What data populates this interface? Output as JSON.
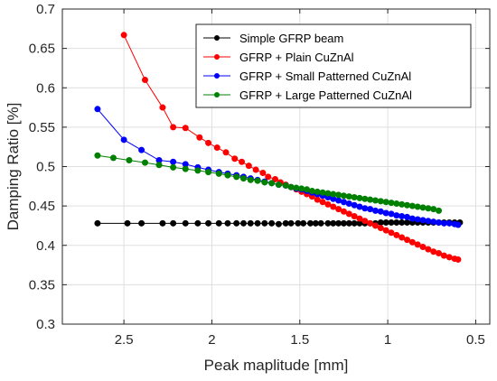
{
  "chart_data": {
    "type": "line",
    "xlabel": "Peak maplitude [mm]",
    "ylabel": "Damping Ratio [%]",
    "xlim": [
      2.85,
      0.42
    ],
    "x_reversed": true,
    "ylim": [
      0.3,
      0.7
    ],
    "xticks": [
      2.5,
      2,
      1.5,
      1,
      0.5
    ],
    "yticks": [
      0.3,
      0.35,
      0.4,
      0.45,
      0.5,
      0.55,
      0.6,
      0.65,
      0.7
    ],
    "xtick_labels": [
      "2.5",
      "2",
      "1.5",
      "1",
      "0.5"
    ],
    "ytick_labels": [
      "0.3",
      "0.35",
      "0.4",
      "0.45",
      "0.5",
      "0.55",
      "0.6",
      "0.65",
      "0.7"
    ],
    "grid": true,
    "legend_position": "top-right",
    "series": [
      {
        "name": "Simple GFRP beam",
        "color": "#000000",
        "x": [
          2.65,
          2.48,
          2.4,
          2.28,
          2.22,
          2.15,
          2.08,
          2.02,
          1.96,
          1.91,
          1.86,
          1.82,
          1.78,
          1.74,
          1.7,
          1.66,
          1.62,
          1.58,
          1.55,
          1.51,
          1.48,
          1.44,
          1.41,
          1.38,
          1.34,
          1.31,
          1.28,
          1.25,
          1.22,
          1.19,
          1.16,
          1.13,
          1.1,
          1.07,
          1.04,
          1.01,
          0.98,
          0.95,
          0.92,
          0.89,
          0.86,
          0.83,
          0.8,
          0.77,
          0.74,
          0.71,
          0.68,
          0.65,
          0.62,
          0.59
        ],
        "y": [
          0.428,
          0.428,
          0.428,
          0.428,
          0.428,
          0.428,
          0.428,
          0.428,
          0.428,
          0.428,
          0.428,
          0.428,
          0.428,
          0.428,
          0.428,
          0.428,
          0.427,
          0.428,
          0.428,
          0.428,
          0.428,
          0.428,
          0.428,
          0.428,
          0.428,
          0.428,
          0.428,
          0.428,
          0.428,
          0.428,
          0.428,
          0.428,
          0.428,
          0.428,
          0.429,
          0.429,
          0.429,
          0.429,
          0.429,
          0.429,
          0.429,
          0.429,
          0.429,
          0.429,
          0.429,
          0.429,
          0.429,
          0.429,
          0.429,
          0.429
        ]
      },
      {
        "name": "GFRP + Plain CuZnAl",
        "color": "#ff0000",
        "x": [
          2.5,
          2.38,
          2.28,
          2.22,
          2.15,
          2.07,
          2.02,
          1.97,
          1.92,
          1.87,
          1.83,
          1.79,
          1.75,
          1.71,
          1.68,
          1.64,
          1.61,
          1.58,
          1.55,
          1.52,
          1.49,
          1.46,
          1.43,
          1.4,
          1.37,
          1.34,
          1.31,
          1.28,
          1.25,
          1.22,
          1.19,
          1.16,
          1.13,
          1.1,
          1.07,
          1.04,
          1.01,
          0.98,
          0.95,
          0.92,
          0.89,
          0.86,
          0.83,
          0.8,
          0.77,
          0.74,
          0.71,
          0.68,
          0.65,
          0.62,
          0.6
        ],
        "y": [
          0.667,
          0.61,
          0.575,
          0.55,
          0.549,
          0.537,
          0.53,
          0.524,
          0.518,
          0.51,
          0.506,
          0.501,
          0.496,
          0.492,
          0.487,
          0.484,
          0.48,
          0.477,
          0.474,
          0.471,
          0.468,
          0.465,
          0.462,
          0.458,
          0.455,
          0.452,
          0.449,
          0.446,
          0.443,
          0.44,
          0.437,
          0.434,
          0.431,
          0.428,
          0.425,
          0.422,
          0.419,
          0.416,
          0.413,
          0.41,
          0.407,
          0.404,
          0.401,
          0.398,
          0.395,
          0.392,
          0.39,
          0.387,
          0.385,
          0.383,
          0.382
        ]
      },
      {
        "name": "GFRP + Small Patterned CuZnAl",
        "color": "#0000ff",
        "x": [
          2.65,
          2.5,
          2.4,
          2.3,
          2.22,
          2.15,
          2.08,
          2.02,
          1.96,
          1.91,
          1.86,
          1.82,
          1.78,
          1.74,
          1.7,
          1.66,
          1.62,
          1.58,
          1.55,
          1.52,
          1.49,
          1.46,
          1.43,
          1.4,
          1.37,
          1.34,
          1.31,
          1.28,
          1.25,
          1.22,
          1.19,
          1.16,
          1.13,
          1.1,
          1.07,
          1.04,
          1.01,
          0.98,
          0.95,
          0.92,
          0.89,
          0.86,
          0.83,
          0.8,
          0.77,
          0.74,
          0.71,
          0.68,
          0.65,
          0.62,
          0.6
        ],
        "y": [
          0.573,
          0.534,
          0.521,
          0.508,
          0.506,
          0.503,
          0.499,
          0.496,
          0.493,
          0.491,
          0.489,
          0.487,
          0.485,
          0.483,
          0.481,
          0.479,
          0.477,
          0.476,
          0.474,
          0.472,
          0.471,
          0.469,
          0.467,
          0.465,
          0.463,
          0.461,
          0.459,
          0.457,
          0.455,
          0.453,
          0.451,
          0.449,
          0.447,
          0.446,
          0.444,
          0.443,
          0.441,
          0.44,
          0.438,
          0.437,
          0.436,
          0.434,
          0.433,
          0.432,
          0.431,
          0.43,
          0.429,
          0.428,
          0.428,
          0.427,
          0.426
        ]
      },
      {
        "name": "GFRP + Large Patterned CuZnAl",
        "color": "#008000",
        "x": [
          2.65,
          2.56,
          2.47,
          2.38,
          2.3,
          2.22,
          2.15,
          2.08,
          2.02,
          1.96,
          1.91,
          1.86,
          1.82,
          1.78,
          1.74,
          1.7,
          1.66,
          1.62,
          1.58,
          1.55,
          1.52,
          1.49,
          1.46,
          1.43,
          1.4,
          1.37,
          1.34,
          1.31,
          1.28,
          1.25,
          1.22,
          1.19,
          1.16,
          1.13,
          1.1,
          1.07,
          1.04,
          1.01,
          0.98,
          0.95,
          0.92,
          0.89,
          0.86,
          0.83,
          0.8,
          0.77,
          0.74,
          0.71
        ],
        "y": [
          0.514,
          0.511,
          0.508,
          0.505,
          0.502,
          0.499,
          0.497,
          0.495,
          0.493,
          0.491,
          0.489,
          0.487,
          0.485,
          0.483,
          0.482,
          0.48,
          0.479,
          0.477,
          0.476,
          0.474,
          0.473,
          0.472,
          0.471,
          0.469,
          0.468,
          0.467,
          0.466,
          0.465,
          0.464,
          0.463,
          0.462,
          0.461,
          0.46,
          0.459,
          0.458,
          0.457,
          0.456,
          0.455,
          0.454,
          0.453,
          0.452,
          0.451,
          0.45,
          0.449,
          0.448,
          0.447,
          0.446,
          0.444
        ]
      }
    ]
  }
}
